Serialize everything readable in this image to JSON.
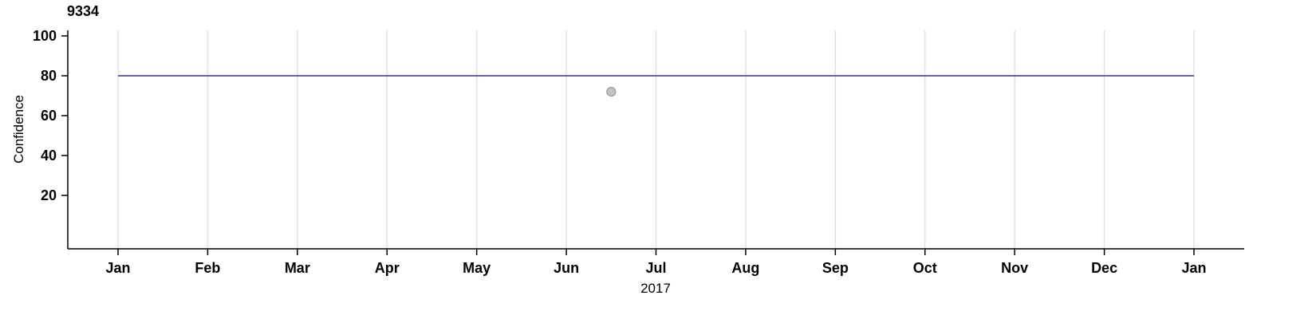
{
  "chart": {
    "title": "9334",
    "ylabel": "Confidence",
    "xlabel": "2017"
  },
  "colors": {
    "axis": "#000000",
    "grid": "#e3e3e3",
    "text": "#000000",
    "line": "#32328c",
    "point_fill": "#c2c2c2",
    "point_stroke": "#9a9a9a"
  },
  "chart_data": {
    "type": "line",
    "title": "9334",
    "xlabel": "2017",
    "ylabel": "Confidence",
    "x_unit": "month-index (0 = Jan 2017, 12 = Jan 2018)",
    "x_tick_labels": [
      "Jan",
      "Feb",
      "Mar",
      "Apr",
      "May",
      "Jun",
      "Jul",
      "Aug",
      "Sep",
      "Oct",
      "Nov",
      "Dec",
      "Jan"
    ],
    "y_ticks": [
      20,
      40,
      60,
      80,
      100
    ],
    "ylim": [
      -7,
      103
    ],
    "grid": "vertical-only",
    "legend": "none",
    "series": [
      {
        "name": "confidence-level-line",
        "type": "line",
        "color": "#32328c",
        "points": [
          {
            "x": 0,
            "y": 80
          },
          {
            "x": 12,
            "y": 80
          }
        ]
      },
      {
        "name": "observation-point",
        "type": "scatter",
        "color": "#c2c2c2",
        "stroke": "#9a9a9a",
        "points": [
          {
            "x": 5.5,
            "y": 72
          }
        ]
      }
    ]
  }
}
